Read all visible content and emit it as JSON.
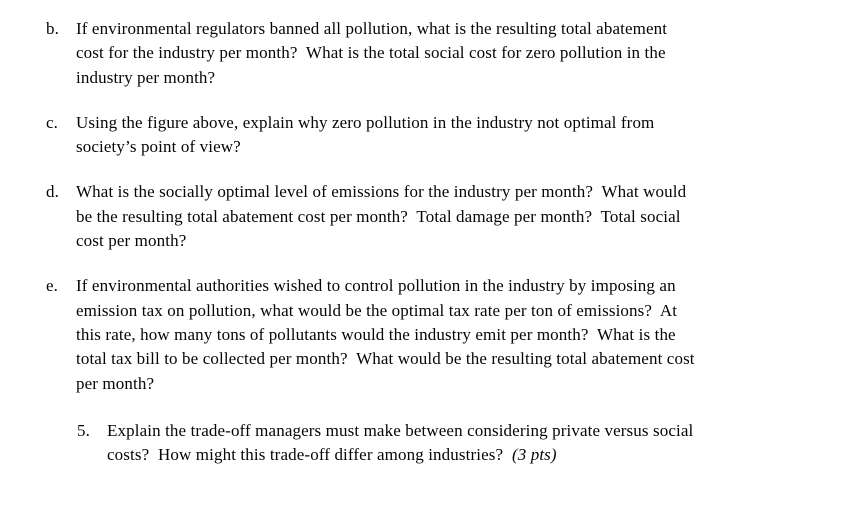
{
  "document": {
    "background_color": "#ffffff",
    "text_color": "#060606",
    "items": [
      {
        "marker": "b.",
        "lines": [
          "If environmental regulators banned all pollution, what is the resulting total abatement",
          "cost for the industry per month?  What is the total social cost for zero pollution in the",
          "industry per month?"
        ]
      },
      {
        "marker": "c.",
        "lines": [
          "Using the figure above, explain why zero pollution in the industry not optimal from",
          "society’s point of view?"
        ]
      },
      {
        "marker": "d.",
        "lines": [
          "What is the socially optimal level of emissions for the industry per month?  What would",
          "be the resulting total abatement cost per month?  Total damage per month?  Total social",
          "cost per month?"
        ]
      },
      {
        "marker": "e.",
        "lines": [
          "If environmental authorities wished to control pollution in the industry by imposing an",
          "emission tax on pollution, what would be the optimal tax rate per ton of emissions?  At",
          "this rate, how many tons of pollutants would the industry emit per month?  What is the",
          "total tax bill to be collected per month?  What would be the resulting total abatement cost",
          "per month?"
        ]
      }
    ],
    "question5": {
      "marker": "5.",
      "lines": [
        "Explain the trade-off managers must make between considering private versus social",
        "costs?  How might this trade-off differ among industries?  "
      ],
      "points_note": "(3 pts)"
    }
  }
}
